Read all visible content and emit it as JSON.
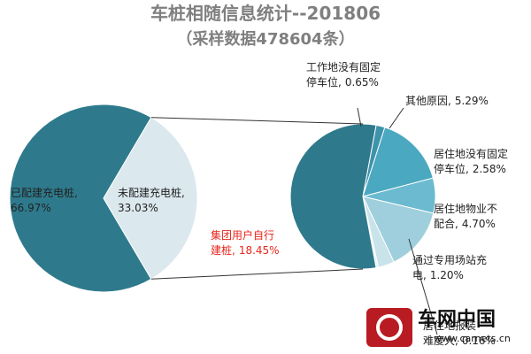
{
  "chart_data": {
    "type": "pie_of_pie",
    "title": "车桩相随信息统计--201806",
    "subtitle": "（采样数据478604条）",
    "categories": [
      "已配建充电桩,",
      "未配建充电桩,"
    ],
    "values": [
      66.97,
      33.03
    ],
    "value_labels": [
      "66.97%",
      "33.03%"
    ],
    "colors": [
      "#2e7a8c",
      "#dbe8ee"
    ],
    "sub_pie": {
      "categories": [
        "工作地没有固定停车位,",
        "其他原因,",
        "居住地没有固定停车位,",
        "居住地物业不配合,",
        "通过专用场站充电,",
        "居住地报装难度大,",
        "集团用户自行建桩,"
      ],
      "values": [
        0.65,
        5.29,
        2.58,
        4.7,
        1.2,
        0.16,
        18.45
      ],
      "value_labels": [
        "0.65%",
        "5.29%",
        "2.58%",
        "4.70%",
        "1.20%",
        "0.16%",
        "18.45%"
      ],
      "colors": [
        "#3d93aa",
        "#4aa8c0",
        "#6bbad0",
        "#9fcfdc",
        "#c8e3ea",
        "#e6f2f5",
        "#2e7a8c"
      ]
    },
    "watermark": {
      "name": "车网中国",
      "url": "www.carnets.cn"
    }
  }
}
